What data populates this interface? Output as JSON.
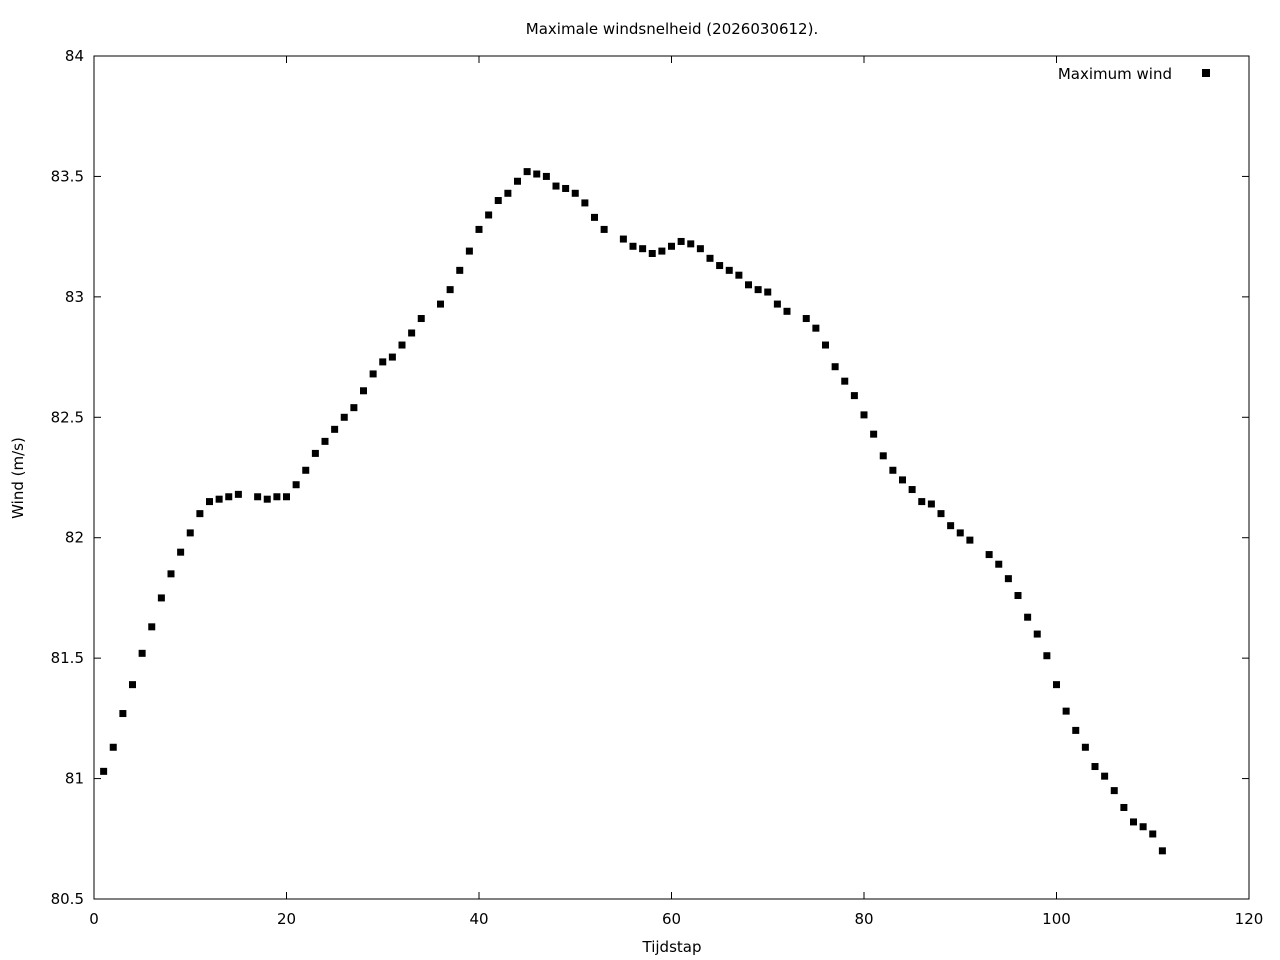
{
  "chart_data": {
    "type": "scatter",
    "title": "Maximale windsnelheid (2026030612).",
    "xlabel": "Tijdstap",
    "ylabel": "Wind (m/s)",
    "xlim": [
      0,
      120
    ],
    "ylim": [
      80.5,
      84
    ],
    "x_ticks": [
      "0",
      "20",
      "40",
      "60",
      "80",
      "100",
      "120"
    ],
    "y_ticks": [
      "80.5",
      "81",
      "81.5",
      "82",
      "82.5",
      "83",
      "83.5",
      "84"
    ],
    "grid": false,
    "legend_position": "top-right",
    "marker": "square",
    "marker_color": "#000000",
    "series": [
      {
        "name": "Maximum wind",
        "points": [
          [
            1,
            81.03
          ],
          [
            2,
            81.13
          ],
          [
            3,
            81.27
          ],
          [
            4,
            81.39
          ],
          [
            5,
            81.52
          ],
          [
            6,
            81.63
          ],
          [
            7,
            81.75
          ],
          [
            8,
            81.85
          ],
          [
            9,
            81.94
          ],
          [
            10,
            82.02
          ],
          [
            11,
            82.1
          ],
          [
            12,
            82.15
          ],
          [
            13,
            82.16
          ],
          [
            14,
            82.17
          ],
          [
            15,
            82.18
          ],
          [
            17,
            82.17
          ],
          [
            18,
            82.16
          ],
          [
            19,
            82.17
          ],
          [
            20,
            82.17
          ],
          [
            21,
            82.22
          ],
          [
            22,
            82.28
          ],
          [
            23,
            82.35
          ],
          [
            24,
            82.4
          ],
          [
            25,
            82.45
          ],
          [
            26,
            82.5
          ],
          [
            27,
            82.54
          ],
          [
            28,
            82.61
          ],
          [
            29,
            82.68
          ],
          [
            30,
            82.73
          ],
          [
            31,
            82.75
          ],
          [
            32,
            82.8
          ],
          [
            33,
            82.85
          ],
          [
            34,
            82.91
          ],
          [
            36,
            82.97
          ],
          [
            37,
            83.03
          ],
          [
            38,
            83.11
          ],
          [
            39,
            83.19
          ],
          [
            40,
            83.28
          ],
          [
            41,
            83.34
          ],
          [
            42,
            83.4
          ],
          [
            43,
            83.43
          ],
          [
            44,
            83.48
          ],
          [
            45,
            83.52
          ],
          [
            46,
            83.51
          ],
          [
            47,
            83.5
          ],
          [
            48,
            83.46
          ],
          [
            49,
            83.45
          ],
          [
            50,
            83.43
          ],
          [
            51,
            83.39
          ],
          [
            52,
            83.33
          ],
          [
            53,
            83.28
          ],
          [
            55,
            83.24
          ],
          [
            56,
            83.21
          ],
          [
            57,
            83.2
          ],
          [
            58,
            83.18
          ],
          [
            59,
            83.19
          ],
          [
            60,
            83.21
          ],
          [
            61,
            83.23
          ],
          [
            62,
            83.22
          ],
          [
            63,
            83.2
          ],
          [
            64,
            83.16
          ],
          [
            65,
            83.13
          ],
          [
            66,
            83.11
          ],
          [
            67,
            83.09
          ],
          [
            68,
            83.05
          ],
          [
            69,
            83.03
          ],
          [
            70,
            83.02
          ],
          [
            71,
            82.97
          ],
          [
            72,
            82.94
          ],
          [
            74,
            82.91
          ],
          [
            75,
            82.87
          ],
          [
            76,
            82.8
          ],
          [
            77,
            82.71
          ],
          [
            78,
            82.65
          ],
          [
            79,
            82.59
          ],
          [
            80,
            82.51
          ],
          [
            81,
            82.43
          ],
          [
            82,
            82.34
          ],
          [
            83,
            82.28
          ],
          [
            84,
            82.24
          ],
          [
            85,
            82.2
          ],
          [
            86,
            82.15
          ],
          [
            87,
            82.14
          ],
          [
            88,
            82.1
          ],
          [
            89,
            82.05
          ],
          [
            90,
            82.02
          ],
          [
            91,
            81.99
          ],
          [
            93,
            81.93
          ],
          [
            94,
            81.89
          ],
          [
            95,
            81.83
          ],
          [
            96,
            81.76
          ],
          [
            97,
            81.67
          ],
          [
            98,
            81.6
          ],
          [
            99,
            81.51
          ],
          [
            100,
            81.39
          ],
          [
            101,
            81.28
          ],
          [
            102,
            81.2
          ],
          [
            103,
            81.13
          ],
          [
            104,
            81.05
          ],
          [
            105,
            81.01
          ],
          [
            106,
            80.95
          ],
          [
            107,
            80.88
          ],
          [
            108,
            80.82
          ],
          [
            109,
            80.8
          ],
          [
            110,
            80.77
          ],
          [
            111,
            80.7
          ]
        ]
      }
    ]
  }
}
